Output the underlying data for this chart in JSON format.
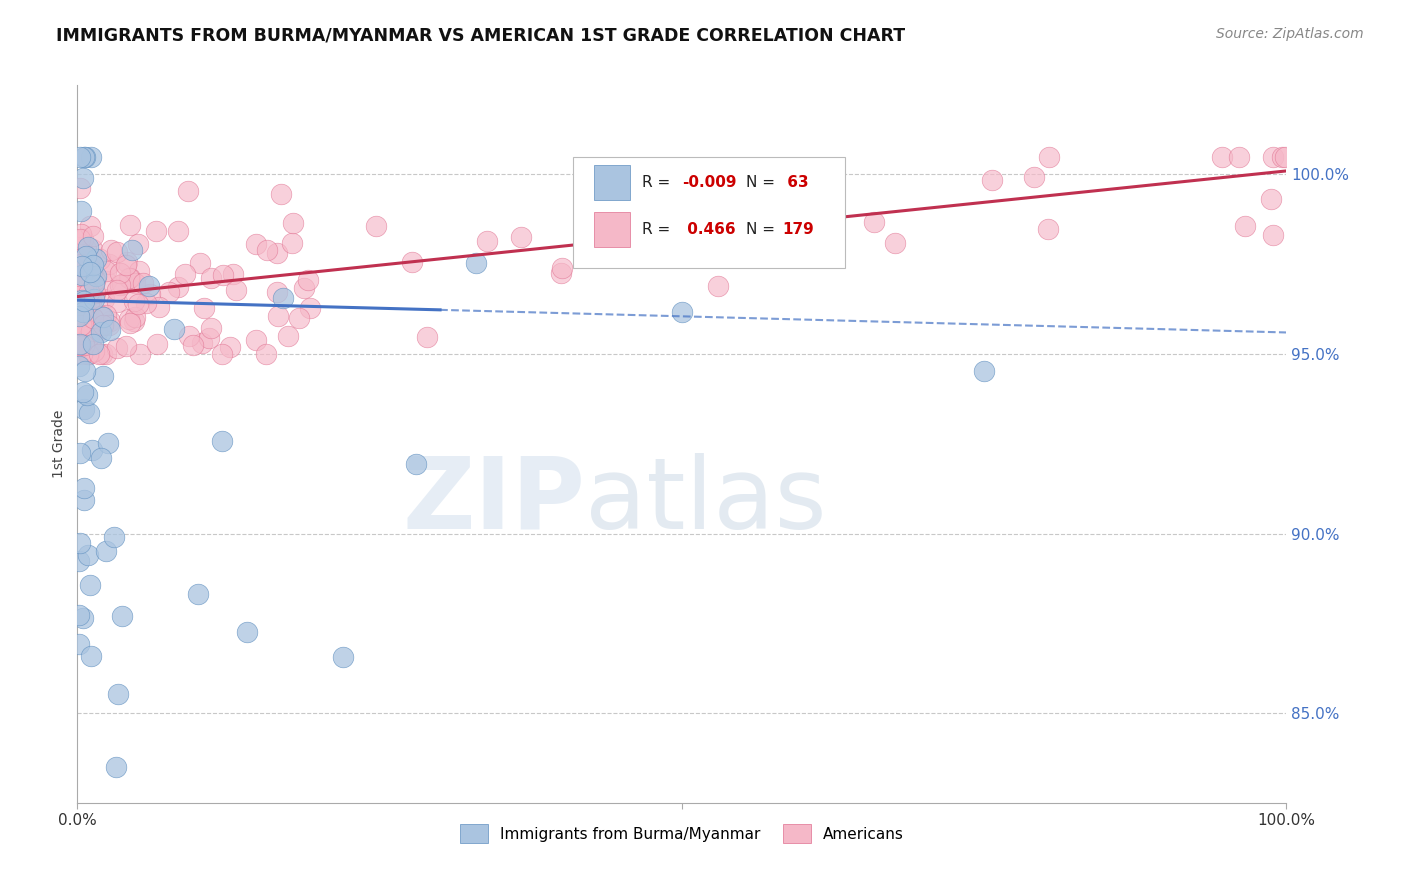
{
  "title": "IMMIGRANTS FROM BURMA/MYANMAR VS AMERICAN 1ST GRADE CORRELATION CHART",
  "source": "Source: ZipAtlas.com",
  "ylabel": "1st Grade",
  "ytick_labels": [
    "85.0%",
    "90.0%",
    "95.0%",
    "100.0%"
  ],
  "ytick_values": [
    0.85,
    0.9,
    0.95,
    1.0
  ],
  "xlim": [
    0.0,
    1.0
  ],
  "ylim": [
    0.825,
    1.025
  ],
  "blue_color": "#aac4e0",
  "pink_color": "#f5b8c8",
  "blue_edge_color": "#6090c0",
  "pink_edge_color": "#e07090",
  "blue_line_color": "#4472c4",
  "pink_line_color": "#c0304060",
  "background_color": "#ffffff",
  "grid_color": "#c8c8c8",
  "ytick_color": "#4472c4",
  "title_color": "#111111",
  "source_color": "#888888"
}
